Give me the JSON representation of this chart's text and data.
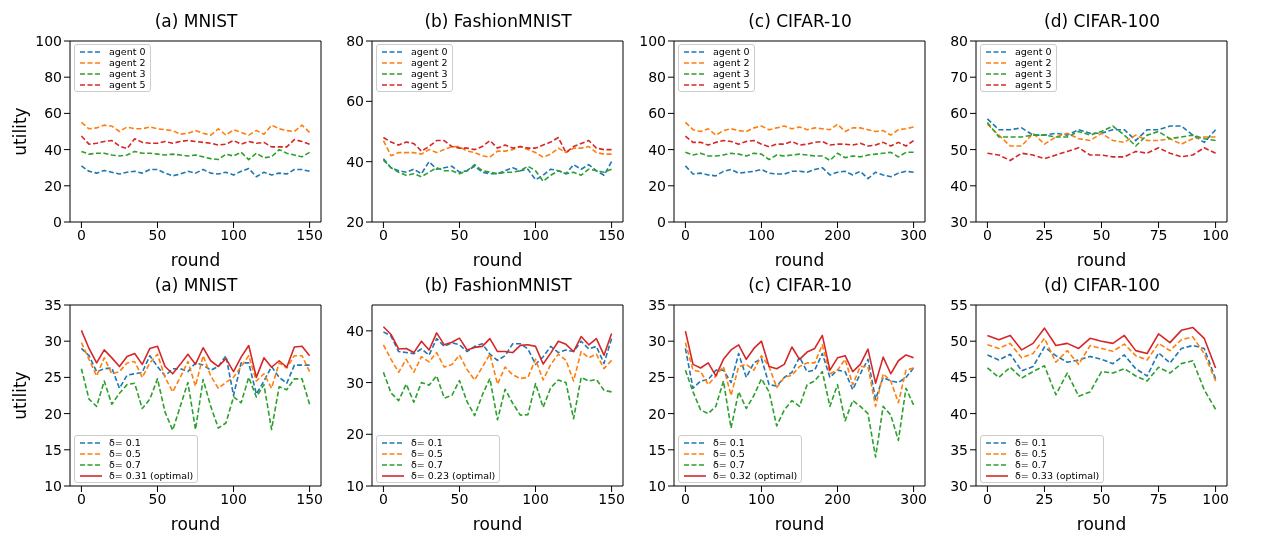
{
  "chart_data": [
    {
      "type": "line",
      "title": "(a) MNIST",
      "xlabel": "round",
      "ylabel": "utility",
      "legend": "top left",
      "x": [
        0,
        5,
        10,
        15,
        20,
        25,
        30,
        35,
        40,
        45,
        50,
        55,
        60,
        65,
        70,
        75,
        80,
        85,
        90,
        95,
        100,
        105,
        110,
        115,
        120,
        125,
        130,
        135,
        140,
        145,
        150
      ],
      "xlim": [
        -7.5,
        157.5
      ],
      "xticks": [
        0,
        50,
        100,
        150
      ],
      "ylim": [
        0,
        100
      ],
      "yticks": [
        0,
        20,
        40,
        60,
        80,
        100
      ],
      "series": [
        {
          "name": "agent 0",
          "color": "#1f77b4",
          "line_style": "dashed",
          "values": [
            31,
            28,
            27,
            28.5,
            27.5,
            26.5,
            27.5,
            28,
            27,
            29,
            29,
            27,
            25.5,
            26.5,
            28,
            27,
            29,
            27,
            26.5,
            27.5,
            26,
            28,
            29.5,
            25,
            27.5,
            26,
            27,
            26.5,
            29,
            29,
            28
          ]
        },
        {
          "name": "agent 2",
          "color": "#ff7f0e",
          "line_style": "dashed",
          "values": [
            55,
            51.5,
            52,
            53.5,
            53,
            50,
            52.5,
            51.5,
            51.5,
            52.5,
            51.5,
            51,
            50.5,
            48.5,
            49,
            50.5,
            49,
            48,
            51.5,
            48,
            51,
            49.5,
            48,
            50.5,
            48.5,
            53.5,
            51.5,
            50.5,
            50,
            53.5,
            49.5
          ]
        },
        {
          "name": "agent 3",
          "color": "#2ca02c",
          "line_style": "dashed",
          "values": [
            39,
            37.5,
            38,
            38,
            37,
            36.5,
            37,
            39,
            38,
            38,
            37.5,
            37,
            37.5,
            37,
            36.5,
            37,
            36,
            35,
            34.5,
            37.5,
            36.5,
            38.5,
            34.5,
            38,
            35.5,
            36,
            40,
            38,
            37,
            36,
            38.5
          ]
        },
        {
          "name": "agent 5",
          "color": "#d62728",
          "line_style": "dashed",
          "values": [
            47.5,
            43,
            43.5,
            44.5,
            45,
            42,
            40.5,
            46,
            44,
            43.5,
            43.5,
            44.5,
            43.5,
            44.5,
            45,
            44.5,
            44,
            43.5,
            42.5,
            43,
            45,
            43,
            44.5,
            43.5,
            44,
            41.5,
            41.5,
            41.5,
            45.5,
            44.5,
            43
          ]
        }
      ]
    },
    {
      "type": "line",
      "title": "(b) FashionMNIST",
      "xlabel": "round",
      "legend": "top left",
      "x": [
        0,
        5,
        10,
        15,
        20,
        25,
        30,
        35,
        40,
        45,
        50,
        55,
        60,
        65,
        70,
        75,
        80,
        85,
        90,
        95,
        100,
        105,
        110,
        115,
        120,
        125,
        130,
        135,
        140,
        145,
        150
      ],
      "xlim": [
        -7.5,
        157.5
      ],
      "xticks": [
        0,
        50,
        100,
        150
      ],
      "ylim": [
        20,
        80
      ],
      "yticks": [
        20,
        40,
        60,
        80
      ],
      "series": [
        {
          "name": "agent 0",
          "color": "#1f77b4",
          "line_style": "dashed",
          "values": [
            41,
            38,
            37,
            36.5,
            37.5,
            36,
            40,
            37.5,
            38,
            38.5,
            36.5,
            37,
            38.5,
            36.5,
            36,
            36,
            37,
            38,
            37,
            37.5,
            34,
            35.5,
            37.5,
            37,
            36,
            39,
            37.5,
            39,
            37,
            35.5,
            40
          ]
        },
        {
          "name": "agent 2",
          "color": "#ff7f0e",
          "line_style": "dashed",
          "values": [
            47,
            42,
            43,
            43,
            43,
            42.5,
            44,
            43,
            44,
            45,
            45,
            43.5,
            43,
            42,
            41.5,
            43.5,
            43.5,
            44,
            45,
            44,
            43,
            41.5,
            42.5,
            44.5,
            43,
            44.5,
            44.5,
            45,
            43,
            42.5,
            42.5
          ]
        },
        {
          "name": "agent 3",
          "color": "#2ca02c",
          "line_style": "dashed",
          "values": [
            40.5,
            38,
            36.5,
            35.5,
            36,
            35,
            36.5,
            38,
            37,
            37,
            36,
            37,
            39,
            37,
            36.5,
            36,
            36.5,
            36.5,
            37,
            38.5,
            37,
            33.5,
            35.5,
            37,
            36,
            36.5,
            35.5,
            37.5,
            37,
            36.5,
            37.5
          ]
        },
        {
          "name": "agent 5",
          "color": "#d62728",
          "line_style": "dashed",
          "values": [
            48,
            46.5,
            45.5,
            46.5,
            46,
            43.5,
            45,
            47,
            47,
            45,
            44.5,
            44.5,
            44,
            45,
            47,
            44.5,
            45.5,
            44.5,
            45,
            44.5,
            44.5,
            45.5,
            46.5,
            48,
            43,
            45,
            46,
            47,
            44.5,
            44,
            44
          ]
        }
      ]
    },
    {
      "type": "line",
      "title": "(c) CIFAR-10",
      "xlabel": "round",
      "legend": "top left",
      "x": [
        0,
        10,
        20,
        30,
        40,
        50,
        60,
        70,
        80,
        90,
        100,
        110,
        120,
        130,
        140,
        150,
        160,
        170,
        180,
        190,
        200,
        210,
        220,
        230,
        240,
        250,
        260,
        270,
        280,
        290,
        300
      ],
      "xlim": [
        -15,
        315
      ],
      "xticks": [
        0,
        100,
        200,
        300
      ],
      "ylim": [
        0,
        100
      ],
      "yticks": [
        0,
        20,
        40,
        60,
        80,
        100
      ],
      "series": [
        {
          "name": "agent 0",
          "color": "#1f77b4",
          "line_style": "dashed",
          "values": [
            31,
            26.5,
            27,
            26,
            25.5,
            28,
            29,
            27,
            27.5,
            28,
            29,
            27,
            26.5,
            26.5,
            28,
            28,
            27.5,
            29,
            30,
            26,
            27.5,
            28,
            26,
            28,
            24,
            27.5,
            26,
            25,
            27,
            28,
            27.5
          ]
        },
        {
          "name": "agent 2",
          "color": "#ff7f0e",
          "line_style": "dashed",
          "values": [
            55,
            51,
            50,
            51.5,
            48,
            50.5,
            51.5,
            50.5,
            50,
            52,
            53,
            51,
            52,
            53,
            51.5,
            52.5,
            51,
            52,
            51.5,
            51,
            54,
            50,
            52,
            52,
            51,
            50,
            50.5,
            48,
            51,
            51.5,
            52.5
          ]
        },
        {
          "name": "agent 3",
          "color": "#2ca02c",
          "line_style": "dashed",
          "values": [
            38.5,
            37,
            38,
            36.5,
            36.5,
            37,
            38,
            37.5,
            36.5,
            38,
            37.5,
            34.5,
            37,
            36.5,
            37,
            37.5,
            37,
            36.5,
            36.5,
            34,
            38,
            35.5,
            36.5,
            36,
            37,
            37.5,
            38,
            38.5,
            36,
            38.5,
            38.5
          ]
        },
        {
          "name": "agent 5",
          "color": "#d62728",
          "line_style": "dashed",
          "values": [
            47.5,
            44,
            44,
            42.5,
            44,
            45,
            44.5,
            43,
            44.5,
            45,
            43,
            41.5,
            43,
            43,
            44.5,
            42.5,
            43,
            44,
            44.5,
            42.5,
            43,
            43,
            42.5,
            43.5,
            42,
            42.5,
            44,
            42,
            44,
            42,
            45
          ]
        }
      ]
    },
    {
      "type": "line",
      "title": "(d) CIFAR-100",
      "xlabel": "round",
      "legend": "top left",
      "x": [
        0,
        5,
        10,
        15,
        20,
        25,
        30,
        35,
        40,
        45,
        50,
        55,
        60,
        65,
        70,
        75,
        80,
        85,
        90,
        95,
        100
      ],
      "xlim": [
        -5,
        105
      ],
      "xticks": [
        0,
        25,
        50,
        75,
        100
      ],
      "ylim": [
        30,
        80
      ],
      "yticks": [
        30,
        40,
        50,
        60,
        70,
        80
      ],
      "series": [
        {
          "name": "agent 0",
          "color": "#1f77b4",
          "line_style": "dashed",
          "values": [
            58.5,
            55.5,
            55.5,
            56,
            54,
            54,
            54.5,
            54,
            55.5,
            54.5,
            54.5,
            55.5,
            55.5,
            52.5,
            55.5,
            55.5,
            56.5,
            56.5,
            54,
            52,
            55.5
          ]
        },
        {
          "name": "agent 2",
          "color": "#ff7f0e",
          "line_style": "dashed",
          "values": [
            57,
            54,
            51,
            51,
            54.5,
            51.5,
            53.5,
            54.5,
            53,
            52.5,
            54.5,
            52.5,
            52,
            54,
            52.5,
            52.5,
            53,
            51.5,
            53,
            53.5,
            53.5
          ]
        },
        {
          "name": "agent 3",
          "color": "#2ca02c",
          "line_style": "dashed",
          "values": [
            57.5,
            53.5,
            53.5,
            53.5,
            54,
            54,
            53.5,
            53.5,
            55,
            54,
            55,
            56.5,
            54,
            51,
            54,
            55,
            53,
            53.5,
            54,
            53,
            52.5
          ]
        },
        {
          "name": "agent 5",
          "color": "#d62728",
          "line_style": "dashed",
          "values": [
            49,
            48.5,
            47,
            49,
            48.5,
            47.5,
            48.5,
            49.5,
            50.5,
            48.5,
            48.5,
            48,
            48,
            49.5,
            49,
            50.5,
            49,
            48,
            48.5,
            50.5,
            49
          ]
        }
      ]
    },
    {
      "type": "line",
      "title": "(a) MNIST",
      "xlabel": "round",
      "ylabel": "utility",
      "legend": "bottom left",
      "x": [
        0,
        5,
        10,
        15,
        20,
        25,
        30,
        35,
        40,
        45,
        50,
        55,
        60,
        65,
        70,
        75,
        80,
        85,
        90,
        95,
        100,
        105,
        110,
        115,
        120,
        125,
        130,
        135,
        140,
        145,
        150
      ],
      "xlim": [
        -7.5,
        157.5
      ],
      "xticks": [
        0,
        50,
        100,
        150
      ],
      "ylim": [
        10,
        35
      ],
      "yticks": [
        10,
        15,
        20,
        25,
        30,
        35
      ],
      "series": [
        {
          "name": "δ= 0.1",
          "color": "#1f77b4",
          "line_style": "dashed",
          "values": [
            29,
            28,
            25.8,
            26.2,
            26.3,
            23.5,
            25.3,
            25.5,
            25.7,
            28,
            26.5,
            25.2,
            26.2,
            26.2,
            25.8,
            27,
            26.7,
            26,
            26.5,
            28,
            22.5,
            27,
            27,
            22.7,
            24.5,
            26.5,
            25,
            24.2,
            26.7,
            26.7,
            26.7
          ]
        },
        {
          "name": "δ= 0.5",
          "color": "#ff7f0e",
          "line_style": "dashed",
          "values": [
            29.8,
            27.5,
            25.2,
            27.7,
            25.5,
            25.8,
            27,
            27.2,
            25,
            27,
            28.2,
            25,
            23,
            25,
            27.2,
            23.8,
            28,
            25.2,
            23.5,
            24.3,
            25,
            26.5,
            28,
            24.5,
            25.5,
            23.5,
            27,
            26.3,
            28,
            28,
            25.8
          ]
        },
        {
          "name": "δ= 0.7",
          "color": "#2ca02c",
          "line_style": "dashed",
          "values": [
            26.2,
            22,
            21,
            24.5,
            21.3,
            22.8,
            24,
            24.2,
            20.7,
            22,
            24.8,
            20.2,
            17.7,
            21,
            24.3,
            17.8,
            24.7,
            21,
            18,
            18.7,
            22.3,
            21.5,
            25,
            22.3,
            24,
            17.8,
            23.7,
            23.3,
            24.8,
            24.8,
            21.3
          ]
        },
        {
          "name": "δ= 0.31 (optimal)",
          "color": "#d62728",
          "line_style": "solid",
          "values": [
            31.5,
            29,
            27,
            28.8,
            27.7,
            26.5,
            27.9,
            28.3,
            26.8,
            29,
            29.3,
            26.5,
            25.5,
            26.8,
            28.2,
            26.8,
            29.1,
            27.3,
            26.5,
            27.6,
            25.8,
            27.8,
            29.4,
            25,
            27.7,
            26.4,
            27.3,
            26.4,
            29.2,
            29.3,
            28
          ]
        }
      ]
    },
    {
      "type": "line",
      "title": "(b) FashionMNIST",
      "xlabel": "round",
      "legend": "bottom left",
      "x": [
        0,
        5,
        10,
        15,
        20,
        25,
        30,
        35,
        40,
        45,
        50,
        55,
        60,
        65,
        70,
        75,
        80,
        85,
        90,
        95,
        100,
        105,
        110,
        115,
        120,
        125,
        130,
        135,
        140,
        145,
        150
      ],
      "xlim": [
        -7.5,
        157.5
      ],
      "xticks": [
        0,
        50,
        100,
        150
      ],
      "ylim": [
        10,
        45
      ],
      "yticks": [
        10,
        20,
        30,
        40
      ],
      "series": [
        {
          "name": "δ= 0.1",
          "color": "#1f77b4",
          "line_style": "dashed",
          "values": [
            39.8,
            39,
            36,
            35.8,
            35.6,
            36.5,
            35.3,
            38.5,
            37,
            37.7,
            37.3,
            36,
            37,
            37.5,
            35.5,
            34.3,
            35.2,
            37.5,
            37.5,
            36.5,
            33.5,
            35,
            37,
            35.8,
            36.3,
            36,
            38,
            36.5,
            37,
            33.7,
            38.5
          ]
        },
        {
          "name": "δ= 0.5",
          "color": "#ff7f0e",
          "line_style": "dashed",
          "values": [
            37.3,
            34.5,
            32,
            34.5,
            32,
            35,
            34,
            35.8,
            33,
            33.5,
            35.3,
            32.5,
            30.5,
            33,
            35.5,
            29.7,
            33,
            31.5,
            30.8,
            31,
            34.5,
            30.5,
            33.5,
            35.5,
            34.3,
            30.3,
            36,
            34.8,
            35.5,
            32.7,
            34.3
          ]
        },
        {
          "name": "δ= 0.7",
          "color": "#2ca02c",
          "line_style": "dashed",
          "values": [
            32,
            28,
            26.5,
            29.7,
            26.2,
            30,
            29.5,
            31.3,
            27,
            27.5,
            30.4,
            26.3,
            23.6,
            27.6,
            30.8,
            22.8,
            28.7,
            26,
            23.7,
            23.8,
            29.8,
            25.2,
            29,
            30.5,
            30,
            23,
            31,
            30.3,
            30.6,
            28.5,
            28.2
          ]
        },
        {
          "name": "δ= 0.23 (optimal)",
          "color": "#d62728",
          "line_style": "solid",
          "values": [
            40.8,
            39.3,
            36.5,
            36.6,
            35.8,
            38,
            36.3,
            39.6,
            37.3,
            37.8,
            38.6,
            36.3,
            36.8,
            37,
            38.5,
            36,
            36,
            35.8,
            37.2,
            37.3,
            37,
            33.6,
            35.7,
            38,
            37.4,
            36,
            38.9,
            37.3,
            38.5,
            35.3,
            39.5
          ]
        }
      ]
    },
    {
      "type": "line",
      "title": "(c) CIFAR-10",
      "xlabel": "round",
      "legend": "bottom left",
      "x": [
        0,
        10,
        20,
        30,
        40,
        50,
        60,
        70,
        80,
        90,
        100,
        110,
        120,
        130,
        140,
        150,
        160,
        170,
        180,
        190,
        200,
        210,
        220,
        230,
        240,
        250,
        260,
        270,
        280,
        290,
        300
      ],
      "xlim": [
        -15,
        315
      ],
      "xticks": [
        0,
        100,
        200,
        300
      ],
      "ylim": [
        10,
        35
      ],
      "yticks": [
        10,
        15,
        20,
        25,
        30,
        35
      ],
      "series": [
        {
          "name": "δ= 0.1",
          "color": "#1f77b4",
          "line_style": "dashed",
          "values": [
            29,
            23.5,
            24.5,
            24.7,
            26,
            26,
            24.3,
            28.3,
            25,
            27,
            27.6,
            24,
            23.8,
            25,
            25.7,
            27.8,
            25.8,
            26,
            28.3,
            25,
            26,
            25.8,
            23.3,
            25.5,
            27.5,
            22,
            25,
            24.5,
            24.3,
            25,
            26.3
          ]
        },
        {
          "name": "δ= 0.5",
          "color": "#ff7f0e",
          "line_style": "dashed",
          "values": [
            29.8,
            26,
            25.8,
            24,
            25.2,
            26.5,
            22.5,
            26.5,
            26.8,
            26,
            28,
            26.5,
            23.6,
            25,
            25.3,
            26.5,
            27,
            27,
            29.5,
            25.5,
            26,
            27.5,
            24,
            26.5,
            26.5,
            21,
            25.5,
            24.5,
            21.5,
            26,
            26.3
          ]
        },
        {
          "name": "δ= 0.7",
          "color": "#2ca02c",
          "line_style": "dashed",
          "values": [
            26,
            23,
            20.5,
            20,
            21,
            24.5,
            18,
            23,
            20.7,
            22.5,
            24.8,
            23,
            18.3,
            20.5,
            21.8,
            21,
            24,
            24.5,
            25.8,
            21,
            24,
            19,
            21.8,
            21,
            20,
            14,
            21,
            19.8,
            16.3,
            23.5,
            21.2
          ]
        },
        {
          "name": "δ= 0.32 (optimal)",
          "color": "#d62728",
          "line_style": "solid",
          "values": [
            31.4,
            26.8,
            26.3,
            27,
            25.2,
            27.5,
            28.8,
            29.5,
            27.5,
            29,
            30,
            26.5,
            26.2,
            26.8,
            29.2,
            27.5,
            28.5,
            29,
            30.8,
            26,
            27.7,
            28,
            25.8,
            26.8,
            28.9,
            24.2,
            27.8,
            25.5,
            27.3,
            28.1,
            27.7
          ]
        }
      ]
    },
    {
      "type": "line",
      "title": "(d) CIFAR-100",
      "xlabel": "round",
      "legend": "bottom left",
      "x": [
        0,
        5,
        10,
        15,
        20,
        25,
        30,
        35,
        40,
        45,
        50,
        55,
        60,
        65,
        70,
        75,
        80,
        85,
        90,
        95,
        100
      ],
      "xlim": [
        -5,
        105
      ],
      "xticks": [
        0,
        25,
        50,
        75,
        100
      ],
      "ylim": [
        30,
        55
      ],
      "yticks": [
        30,
        35,
        40,
        45,
        50,
        55
      ],
      "series": [
        {
          "name": "δ= 0.1",
          "color": "#1f77b4",
          "line_style": "dashed",
          "values": [
            48.1,
            47.4,
            48.2,
            45.9,
            46.5,
            49.2,
            48,
            47.1,
            47.4,
            47.9,
            47.5,
            46.9,
            48.1,
            46.2,
            45.2,
            48.4,
            47,
            49,
            49.4,
            49,
            44.8
          ]
        },
        {
          "name": "δ= 0.5",
          "color": "#ff7f0e",
          "line_style": "dashed",
          "values": [
            49.5,
            49,
            49.7,
            47.7,
            48.3,
            50.4,
            47.1,
            48.7,
            46.8,
            49.4,
            49,
            48.6,
            49.6,
            48,
            47.4,
            49.7,
            48.7,
            50.2,
            50.6,
            48.3,
            44.5
          ]
        },
        {
          "name": "δ= 0.7",
          "color": "#2ca02c",
          "line_style": "dashed",
          "values": [
            46.3,
            45,
            46.4,
            44.9,
            45.8,
            46.6,
            42.6,
            45.6,
            42.4,
            43,
            45.8,
            45.6,
            46.2,
            45.2,
            44.5,
            46.4,
            45.6,
            46.9,
            47.3,
            43.3,
            40.6
          ]
        },
        {
          "name": "δ= 0.33 (optimal)",
          "color": "#d62728",
          "line_style": "solid",
          "values": [
            50.8,
            50.2,
            50.8,
            48.8,
            49.7,
            51.8,
            49.4,
            49.7,
            49,
            50.4,
            50,
            49.7,
            50.8,
            48.7,
            48.3,
            51,
            49.8,
            51.5,
            51.9,
            50.4,
            46.3
          ]
        }
      ]
    }
  ]
}
